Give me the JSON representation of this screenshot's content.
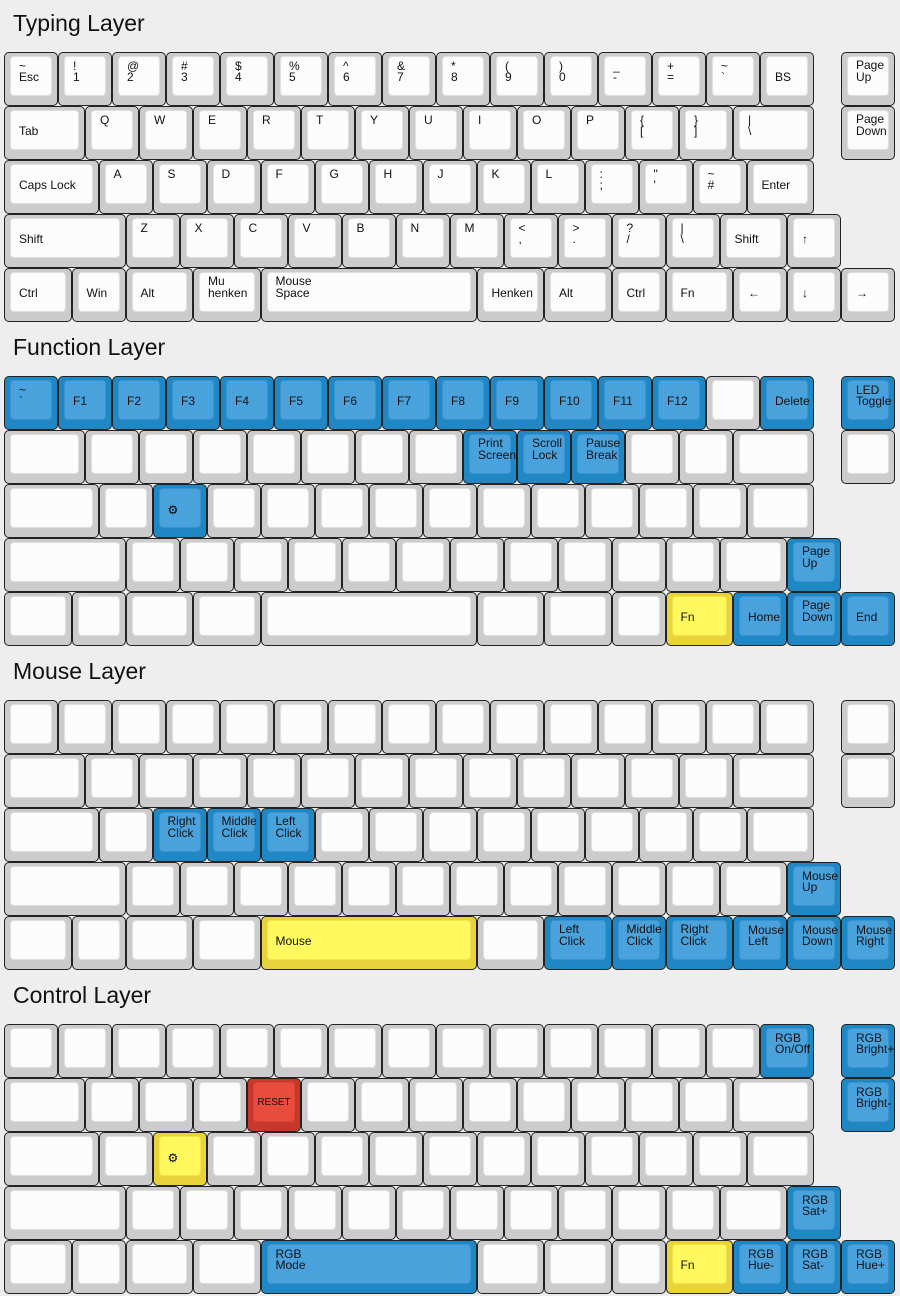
{
  "colors": {
    "background": "#eeeeee",
    "blue": "#4aa2dd",
    "yellow": "#fff95f",
    "red": "#e74c3c",
    "default": "#fcfcfc"
  },
  "layers": [
    {
      "title": "Typing Layer",
      "rows": [
        [
          {
            "t": "~",
            "b": "Esc"
          },
          {
            "t": "!",
            "b": "1"
          },
          {
            "t": "@",
            "b": "2"
          },
          {
            "t": "#",
            "b": "3"
          },
          {
            "t": "$",
            "b": "4"
          },
          {
            "t": "%",
            "b": "5"
          },
          {
            "t": "^",
            "b": "6"
          },
          {
            "t": "&",
            "b": "7"
          },
          {
            "t": "*",
            "b": "8"
          },
          {
            "t": "(",
            "b": "9"
          },
          {
            "t": ")",
            "b": "0"
          },
          {
            "t": "_",
            "b": "-"
          },
          {
            "t": "+",
            "b": "="
          },
          {
            "t": "~",
            "b": "`"
          },
          {
            "b": "BS"
          },
          {
            "b": "Page\nUp"
          }
        ],
        [
          {
            "b": "Tab"
          },
          {
            "t": "Q"
          },
          {
            "t": "W"
          },
          {
            "t": "E"
          },
          {
            "t": "R"
          },
          {
            "t": "T"
          },
          {
            "t": "Y"
          },
          {
            "t": "U"
          },
          {
            "t": "I"
          },
          {
            "t": "O"
          },
          {
            "t": "P"
          },
          {
            "t": "{",
            "b": "["
          },
          {
            "t": "}",
            "b": "]"
          },
          {
            "t": "|",
            "b": "\\"
          },
          {
            "b": "Page\nDown"
          }
        ],
        [
          {
            "b": "Caps Lock"
          },
          {
            "t": "A"
          },
          {
            "t": "S"
          },
          {
            "t": "D"
          },
          {
            "t": "F"
          },
          {
            "t": "G"
          },
          {
            "t": "H"
          },
          {
            "t": "J"
          },
          {
            "t": "K"
          },
          {
            "t": "L"
          },
          {
            "t": ":",
            "b": ";"
          },
          {
            "t": "\"",
            "b": "'"
          },
          {
            "t": "~",
            "b": "#"
          },
          {
            "b": "Enter"
          }
        ],
        [
          {
            "b": "Shift"
          },
          {
            "t": "Z"
          },
          {
            "t": "X"
          },
          {
            "t": "C"
          },
          {
            "t": "V"
          },
          {
            "t": "B"
          },
          {
            "t": "N"
          },
          {
            "t": "M"
          },
          {
            "t": "<",
            "b": ","
          },
          {
            "t": ">",
            "b": "."
          },
          {
            "t": "?",
            "b": "/"
          },
          {
            "t": "|",
            "b": "\\"
          },
          {
            "b": "Shift"
          },
          {
            "b": "↑"
          }
        ],
        [
          {
            "b": "Ctrl"
          },
          {
            "b": "Win"
          },
          {
            "b": "Alt"
          },
          {
            "b": "Mu\nhenken"
          },
          {
            "b": "Mouse\nSpace"
          },
          {
            "b": "Henken"
          },
          {
            "b": "Alt"
          },
          {
            "b": "Ctrl"
          },
          {
            "b": "Fn"
          },
          {
            "b": "←"
          },
          {
            "b": "↓"
          },
          {
            "b": "→"
          }
        ]
      ]
    },
    {
      "title": "Function Layer",
      "rows": [
        [
          {
            "t": "~",
            "b": "`",
            "c": "blue"
          },
          {
            "b": "F1",
            "c": "blue"
          },
          {
            "b": "F2",
            "c": "blue"
          },
          {
            "b": "F3",
            "c": "blue"
          },
          {
            "b": "F4",
            "c": "blue"
          },
          {
            "b": "F5",
            "c": "blue"
          },
          {
            "b": "F6",
            "c": "blue"
          },
          {
            "b": "F7",
            "c": "blue"
          },
          {
            "b": "F8",
            "c": "blue"
          },
          {
            "b": "F9",
            "c": "blue"
          },
          {
            "b": "F10",
            "c": "blue"
          },
          {
            "b": "F11",
            "c": "blue"
          },
          {
            "b": "F12",
            "c": "blue"
          },
          null,
          {
            "b": "Delete",
            "c": "blue"
          },
          {
            "t": "LED",
            "b": "Toggle",
            "c": "blue"
          }
        ],
        [
          null,
          null,
          null,
          null,
          null,
          null,
          null,
          null,
          {
            "b": "Print\nScreen",
            "c": "blue"
          },
          {
            "b": "Scroll\nLock",
            "c": "blue"
          },
          {
            "b": "Pause\nBreak",
            "c": "blue"
          },
          null,
          null,
          null,
          null
        ],
        [
          null,
          null,
          {
            "icon": "gear",
            "c": "blue"
          },
          null,
          null,
          null,
          null,
          null,
          null,
          null,
          null,
          null,
          null,
          null
        ],
        [
          null,
          null,
          null,
          null,
          null,
          null,
          null,
          null,
          null,
          null,
          null,
          null,
          null,
          {
            "b": "Page\nUp",
            "c": "blue"
          }
        ],
        [
          null,
          null,
          null,
          null,
          null,
          null,
          null,
          null,
          {
            "b": "Fn",
            "c": "yellow"
          },
          {
            "b": "Home",
            "c": "blue"
          },
          {
            "b": "Page\nDown",
            "c": "blue"
          },
          {
            "b": "End",
            "c": "blue"
          }
        ]
      ]
    },
    {
      "title": "Mouse Layer",
      "rows": [
        [
          null,
          null,
          null,
          null,
          null,
          null,
          null,
          null,
          null,
          null,
          null,
          null,
          null,
          null,
          null,
          null
        ],
        [
          null,
          null,
          null,
          null,
          null,
          null,
          null,
          null,
          null,
          null,
          null,
          null,
          null,
          null,
          null
        ],
        [
          null,
          null,
          {
            "b": "Right\nClick",
            "c": "blue"
          },
          {
            "b": "Middle\nClick",
            "c": "blue"
          },
          {
            "b": "Left\nClick",
            "c": "blue"
          },
          null,
          null,
          null,
          null,
          null,
          null,
          null,
          null,
          null
        ],
        [
          null,
          null,
          null,
          null,
          null,
          null,
          null,
          null,
          null,
          null,
          null,
          null,
          null,
          {
            "t": "Mouse",
            "b": "Up",
            "c": "blue"
          }
        ],
        [
          null,
          null,
          null,
          null,
          {
            "b": "Mouse",
            "c": "yellow"
          },
          null,
          {
            "b": "Left\nClick",
            "c": "blue"
          },
          {
            "b": "Middle\nClick",
            "c": "blue"
          },
          {
            "b": "Right\nClick",
            "c": "blue"
          },
          {
            "t": "Mouse",
            "b": "Left",
            "c": "blue"
          },
          {
            "t": "Mouse",
            "b": "Down",
            "c": "blue"
          },
          {
            "t": "Mouse",
            "b": "Right",
            "c": "blue"
          }
        ]
      ]
    },
    {
      "title": "Control Layer",
      "rows": [
        [
          null,
          null,
          null,
          null,
          null,
          null,
          null,
          null,
          null,
          null,
          null,
          null,
          null,
          null,
          {
            "t": "RGB",
            "b": "On/Off",
            "c": "blue"
          },
          {
            "t": "RGB",
            "b": "Bright+",
            "c": "blue"
          }
        ],
        [
          null,
          null,
          null,
          null,
          {
            "b": "RESET",
            "c": "red"
          },
          null,
          null,
          null,
          null,
          null,
          null,
          null,
          null,
          null,
          {
            "t": "RGB",
            "b": "Bright-",
            "c": "blue"
          }
        ],
        [
          null,
          null,
          {
            "icon": "gear",
            "c": "yellow"
          },
          null,
          null,
          null,
          null,
          null,
          null,
          null,
          null,
          null,
          null,
          null
        ],
        [
          null,
          null,
          null,
          null,
          null,
          null,
          null,
          null,
          null,
          null,
          null,
          null,
          null,
          {
            "t": "RGB",
            "b": "Sat+",
            "c": "blue"
          }
        ],
        [
          null,
          null,
          null,
          null,
          {
            "t": "RGB",
            "b": "Mode",
            "c": "blue"
          },
          null,
          null,
          null,
          {
            "b": "Fn",
            "c": "yellow"
          },
          {
            "t": "RGB",
            "b": "Hue-",
            "c": "blue"
          },
          {
            "t": "RGB",
            "b": "Sat-",
            "c": "blue"
          },
          {
            "t": "RGB",
            "b": "Hue+",
            "c": "blue"
          }
        ]
      ]
    }
  ]
}
